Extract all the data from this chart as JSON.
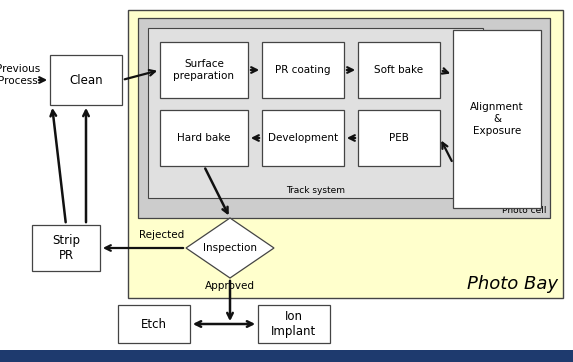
{
  "bg_outer": "#ffffff",
  "bg_photo_bay": "#ffffcc",
  "bg_photo_cell": "#cccccc",
  "bg_track": "#e0e0e0",
  "box_fill": "#ffffff",
  "box_edge": "#444444",
  "arrow_color": "#111111",
  "text_color": "#000000",
  "bottom_bar_color": "#1e3a6e",
  "title_photo_bay": "Photo Bay",
  "title_photo_cell": "Photo cell",
  "title_track": "Track system",
  "label_previous": "Previous\nProcess",
  "label_clean": "Clean",
  "label_surface": "Surface\npreparation",
  "label_pr_coating": "PR coating",
  "label_soft_bake": "Soft bake",
  "label_alignment": "Alignment\n&\nExposure",
  "label_hard_bake": "Hard bake",
  "label_development": "Development",
  "label_peb": "PEB",
  "label_inspection": "Inspection",
  "label_rejected": "Rejected",
  "label_approved": "Approved",
  "label_strip_pr": "Strip\nPR",
  "label_etch": "Etch",
  "label_ion_implant": "Ion\nImplant",
  "fs_tiny": 6.5,
  "fs_small": 7.5,
  "fs_medium": 8.5,
  "fs_large": 13
}
